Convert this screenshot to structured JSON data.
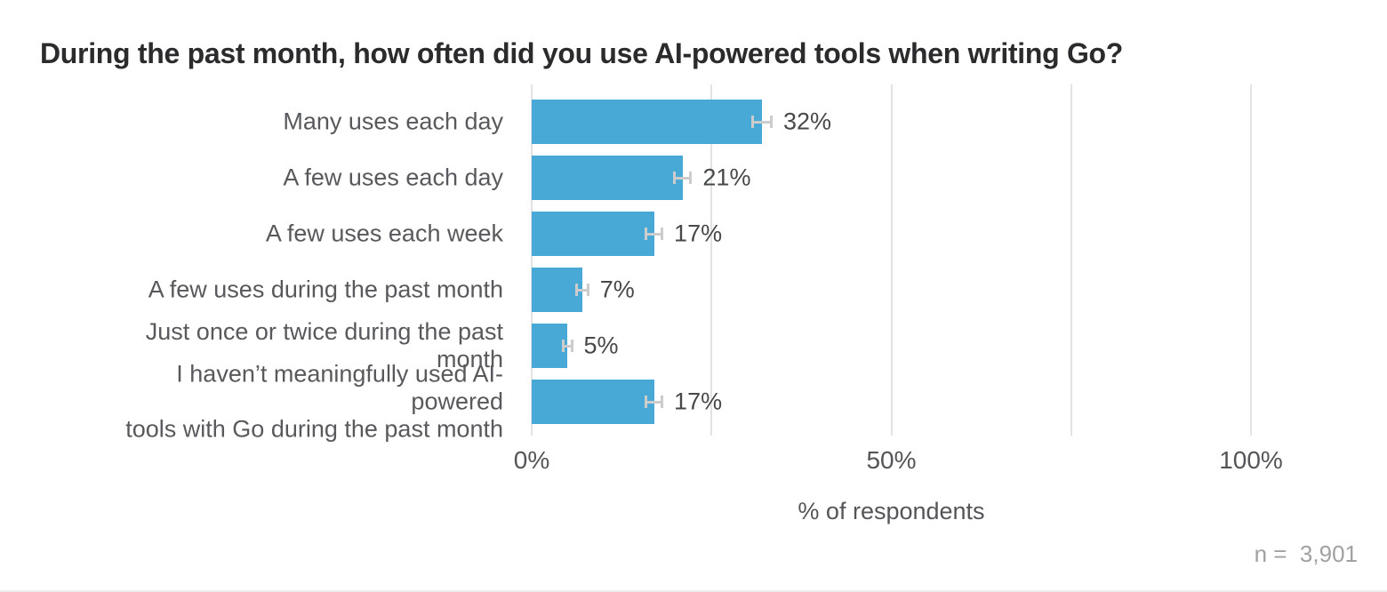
{
  "title": "During the past month, how often did you use AI-powered tools when writing Go?",
  "chart_data": {
    "type": "bar",
    "orientation": "horizontal",
    "title": "During the past month, how often did you use AI-powered tools when writing Go?",
    "categories": [
      "Many uses each day",
      "A few uses each day",
      "A few uses each week",
      "A few uses during the past month",
      "Just once or twice during the past\nmonth",
      "I haven’t meaningfully used AI-powered\ntools with Go during the past month"
    ],
    "values": [
      32,
      21,
      17,
      7,
      5,
      17
    ],
    "value_labels": [
      "32%",
      "21%",
      "17%",
      "7%",
      "5%",
      "17%"
    ],
    "error_margins": [
      1.5,
      1.3,
      1.3,
      1.0,
      0.75,
      1.3
    ],
    "xlabel": "% of respondents",
    "xlim": [
      0,
      100
    ],
    "x_ticks": [
      {
        "value": 0,
        "label": "0%"
      },
      {
        "value": 50,
        "label": "50%"
      },
      {
        "value": 100,
        "label": "100%"
      }
    ],
    "gridline_values": [
      0,
      25,
      50,
      75,
      100
    ],
    "grid": "vertical-only",
    "legend": "none",
    "note": "n =  3,901",
    "colors": {
      "bar": "#48a8d6",
      "error_bar": "#cccccc",
      "gridline": "#e3e3e3",
      "title_text": "#2b2b2e",
      "category_text": "#58595c",
      "value_text": "#47484a",
      "axis_text": "#545558",
      "note_text": "#a1a1a3",
      "background": "#ffffff"
    }
  }
}
